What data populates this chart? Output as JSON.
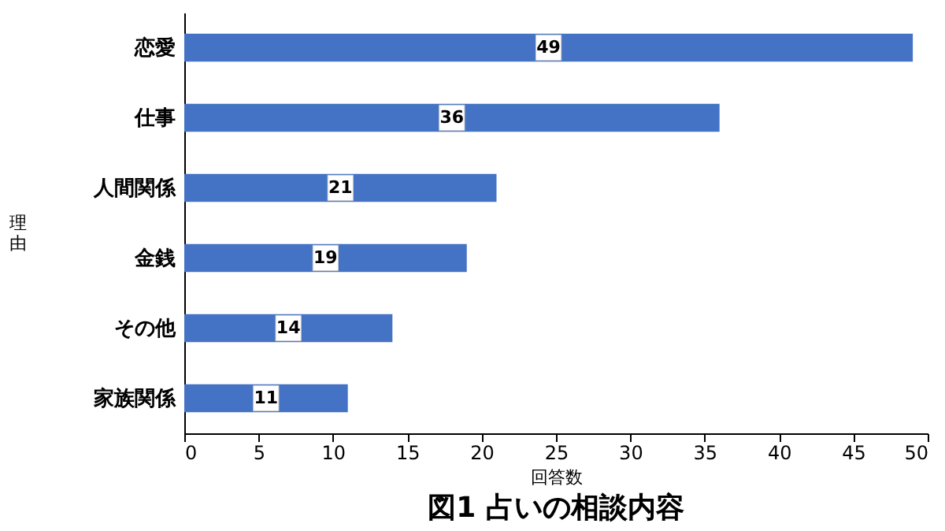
{
  "chart_data": {
    "type": "bar",
    "orientation": "horizontal",
    "title": "図1 占いの相談内容",
    "xlabel": "回答数",
    "ylabel": "理由",
    "categories": [
      "恋愛",
      "仕事",
      "人間関係",
      "金銭",
      "その他",
      "家族関係"
    ],
    "values": [
      49,
      36,
      21,
      19,
      14,
      11
    ],
    "color": "#4472c4",
    "xlim": [
      0,
      50
    ],
    "xticks": [
      0,
      5,
      10,
      15,
      20,
      25,
      30,
      35,
      40,
      45,
      50
    ],
    "grid": false,
    "data_labels": true
  }
}
